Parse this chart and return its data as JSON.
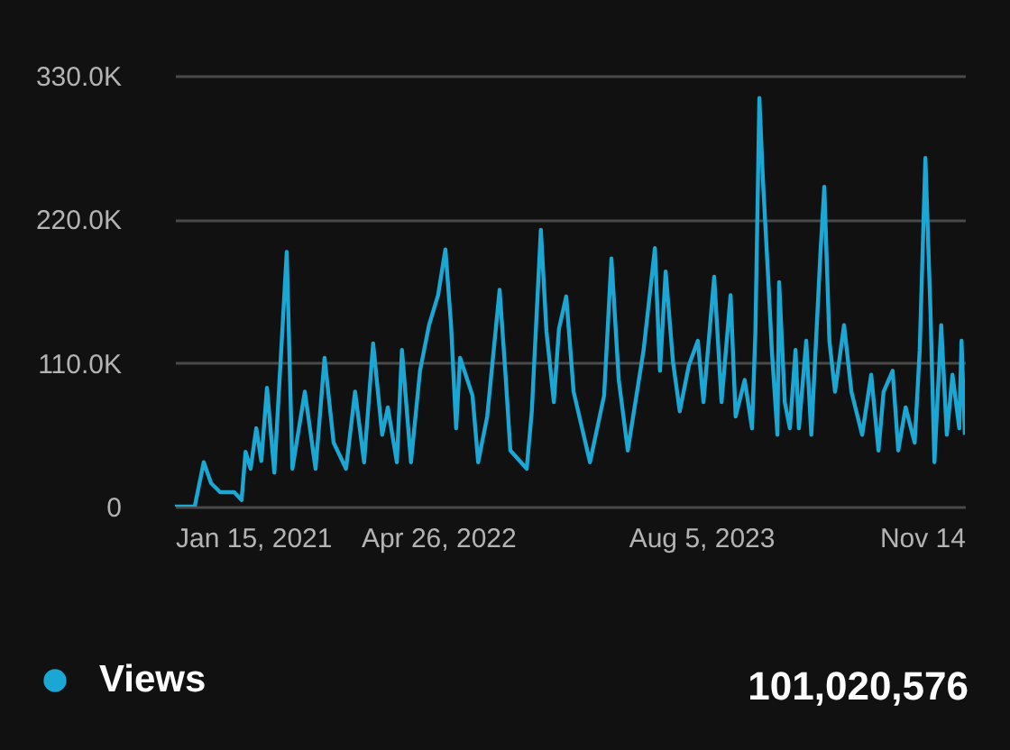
{
  "chart_data": {
    "type": "line",
    "x": [
      "2021-01-15",
      "2021-02-19",
      "2021-03-07",
      "2021-03-20",
      "2021-04-05",
      "2021-04-30",
      "2021-05-13",
      "2021-05-20",
      "2021-05-29",
      "2021-06-08",
      "2021-06-17",
      "2021-06-27",
      "2021-07-10",
      "2021-08-01",
      "2021-08-11",
      "2021-09-02",
      "2021-09-21",
      "2021-10-07",
      "2021-10-23",
      "2021-11-14",
      "2021-11-30",
      "2021-12-16",
      "2022-01-01",
      "2022-01-17",
      "2022-01-27",
      "2022-02-12",
      "2022-02-21",
      "2022-03-09",
      "2022-03-25",
      "2022-04-10",
      "2022-04-26",
      "2022-05-09",
      "2022-05-19",
      "2022-05-28",
      "2022-06-04",
      "2022-06-26",
      "2022-07-06",
      "2022-07-22",
      "2022-08-13",
      "2022-08-23",
      "2022-09-01",
      "2022-09-30",
      "2022-10-09",
      "2022-10-25",
      "2022-11-04",
      "2022-11-17",
      "2022-11-26",
      "2022-12-09",
      "2022-12-22",
      "2023-01-20",
      "2023-02-14",
      "2023-02-27",
      "2023-03-12",
      "2023-03-28",
      "2023-04-25",
      "2023-05-15",
      "2023-05-24",
      "2023-06-03",
      "2023-06-16",
      "2023-06-28",
      "2023-07-14",
      "2023-07-30",
      "2023-08-09",
      "2023-08-28",
      "2023-09-10",
      "2023-09-26",
      "2023-10-05",
      "2023-10-21",
      "2023-11-03",
      "2023-11-09",
      "2023-11-16",
      "2023-11-22",
      "2023-12-02",
      "2023-12-08",
      "2023-12-18",
      "2023-12-21",
      "2023-12-31",
      "2024-01-09",
      "2024-01-19",
      "2024-01-25",
      "2024-02-07",
      "2024-02-16",
      "2024-03-03",
      "2024-03-10",
      "2024-03-19",
      "2024-03-29",
      "2024-04-14",
      "2024-04-27",
      "2024-05-16",
      "2024-06-01",
      "2024-06-14",
      "2024-06-23",
      "2024-07-09",
      "2024-07-19",
      "2024-08-01",
      "2024-08-17",
      "2024-08-26",
      "2024-09-05",
      "2024-09-14",
      "2024-09-21",
      "2024-10-03",
      "2024-10-13",
      "2024-10-23",
      "2024-11-04",
      "2024-11-08",
      "2024-11-14"
    ],
    "series": [
      {
        "name": "Views",
        "color": "#1aa7d4",
        "values": [
          0,
          0,
          34000,
          18000,
          11000,
          11000,
          5000,
          42000,
          29000,
          60000,
          35000,
          91000,
          26000,
          195000,
          29000,
          88000,
          29000,
          114000,
          49000,
          29000,
          88000,
          34000,
          125000,
          55000,
          76000,
          34000,
          120000,
          34000,
          104000,
          139000,
          162000,
          197000,
          139000,
          60000,
          114000,
          85000,
          34000,
          69000,
          166000,
          104000,
          43000,
          29000,
          73000,
          212000,
          134000,
          80000,
          136000,
          161000,
          88000,
          34000,
          85000,
          190000,
          97000,
          43000,
          120000,
          198000,
          104000,
          180000,
          111000,
          73000,
          108000,
          127000,
          80000,
          176000,
          80000,
          162000,
          69000,
          97000,
          60000,
          134000,
          313000,
          253000,
          172000,
          120000,
          55000,
          172000,
          80000,
          60000,
          120000,
          60000,
          127000,
          55000,
          193000,
          245000,
          127000,
          88000,
          139000,
          88000,
          55000,
          101000,
          43000,
          88000,
          104000,
          43000,
          76000,
          49000,
          120000,
          267000,
          150000,
          34000,
          139000,
          55000,
          101000,
          60000,
          127000,
          55000
        ]
      }
    ],
    "xlim": [
      "2021-01-15",
      "2024-11-14"
    ],
    "xticks": [
      {
        "value": "2021-01-15",
        "label": "Jan 15, 2021"
      },
      {
        "value": "2022-04-26",
        "label": "Apr 26, 2022"
      },
      {
        "value": "2023-08-05",
        "label": "Aug 5, 2023"
      },
      {
        "value": "2024-11-14",
        "label": "Nov 14"
      }
    ],
    "ylim": [
      0,
      330000
    ],
    "yticks": [
      0,
      {
        "value": 110000,
        "label": "110.0K"
      },
      {
        "value": 220000,
        "label": "220.0K"
      },
      {
        "value": 330000,
        "label": "330.0K"
      }
    ],
    "grid": "y",
    "legend": "bottom left",
    "marker": "none",
    "line_style": "solid",
    "annotations": [
      "101,020,576"
    ]
  }
}
